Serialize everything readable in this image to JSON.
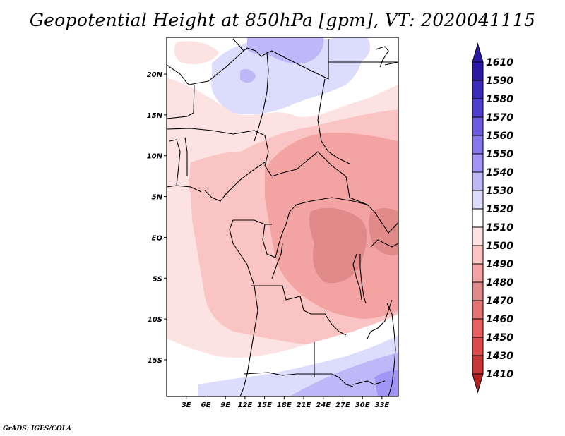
{
  "title": "Geopotential Height at 850hPa [gpm], VT: 2020041115",
  "credit": "GrADS: IGES/COLA",
  "map": {
    "lon_range": [
      0,
      35.5
    ],
    "lat_range": [
      -19.5,
      24.5
    ],
    "x_ticks": [
      {
        "value": 3,
        "label": "3E"
      },
      {
        "value": 6,
        "label": "6E"
      },
      {
        "value": 9,
        "label": "9E"
      },
      {
        "value": 12,
        "label": "12E"
      },
      {
        "value": 15,
        "label": "15E"
      },
      {
        "value": 18,
        "label": "18E"
      },
      {
        "value": 21,
        "label": "21E"
      },
      {
        "value": 24,
        "label": "24E"
      },
      {
        "value": 27,
        "label": "27E"
      },
      {
        "value": 30,
        "label": "30E"
      },
      {
        "value": 33,
        "label": "33E"
      }
    ],
    "y_ticks": [
      {
        "value": 20,
        "label": "20N"
      },
      {
        "value": 15,
        "label": "15N"
      },
      {
        "value": 10,
        "label": "10N"
      },
      {
        "value": 5,
        "label": "5N"
      },
      {
        "value": 0,
        "label": "EQ"
      },
      {
        "value": -5,
        "label": "5S"
      },
      {
        "value": -10,
        "label": "10S"
      },
      {
        "value": -15,
        "label": "15S"
      }
    ]
  },
  "colorbar": {
    "levels": [
      {
        "label": "1410",
        "color": "#b22222"
      },
      {
        "label": "1430",
        "color": "#c83737"
      },
      {
        "label": "1450",
        "color": "#dc4c4c"
      },
      {
        "label": "1460",
        "color": "#e86060"
      },
      {
        "label": "1470",
        "color": "#e57373"
      },
      {
        "label": "1480",
        "color": "#e08a8a"
      },
      {
        "label": "1490",
        "color": "#f4a3a3"
      },
      {
        "label": "1500",
        "color": "#fbc4c4"
      },
      {
        "label": "1510",
        "color": "#fde2e2"
      },
      {
        "label": "1520",
        "color": "#ffffff"
      },
      {
        "label": "1530",
        "color": "#dcdcfc"
      },
      {
        "label": "1540",
        "color": "#bfb8f8"
      },
      {
        "label": "1550",
        "color": "#a295f5"
      },
      {
        "label": "1560",
        "color": "#8677ea"
      },
      {
        "label": "1570",
        "color": "#6a5cdc"
      },
      {
        "label": "1580",
        "color": "#4e40cc"
      },
      {
        "label": "1590",
        "color": "#3a2cb8"
      },
      {
        "label": "1610",
        "color": "#2c1aa4"
      }
    ],
    "below_color": "#b22222",
    "above_color": "#2c1aa4"
  }
}
